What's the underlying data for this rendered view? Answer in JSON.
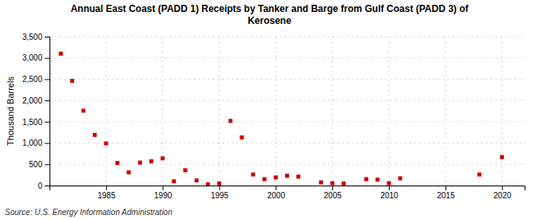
{
  "chart_data": {
    "type": "scatter",
    "title": "Annual East Coast (PADD 1) Receipts by Tanker and Barge from Gulf Coast (PADD 3) of\nKerosene",
    "ylabel": "Thousand Barrels",
    "annotations": [
      "Source: U.S. Energy Information Administration"
    ],
    "x": [
      1981,
      1982,
      1983,
      1984,
      1985,
      1986,
      1987,
      1988,
      1989,
      1990,
      1991,
      1992,
      1993,
      1994,
      1995,
      1996,
      1997,
      1998,
      1999,
      2000,
      2001,
      2002,
      2004,
      2005,
      2006,
      2008,
      2009,
      2010,
      2011,
      2018,
      2020
    ],
    "values": [
      3100,
      2460,
      1760,
      1190,
      990,
      530,
      310,
      540,
      570,
      640,
      100,
      360,
      120,
      30,
      50,
      1520,
      1130,
      260,
      150,
      190,
      230,
      210,
      75,
      55,
      50,
      150,
      140,
      55,
      170,
      260,
      670
    ],
    "color": "#cc0000",
    "marker": "square",
    "xlim": [
      1980,
      2022
    ],
    "xticks": [
      1985,
      1990,
      1995,
      2000,
      2005,
      2010,
      2015,
      2020
    ],
    "ylim": [
      0,
      3500
    ],
    "yticks": [
      0,
      500,
      {
        "value": 1000,
        "label": "1,000"
      },
      {
        "value": 1500,
        "label": "1,500"
      },
      {
        "value": 2000,
        "label": "2,000"
      },
      {
        "value": 2500,
        "label": "2,500"
      },
      {
        "value": 3000,
        "label": "3,000"
      },
      {
        "value": 3500,
        "label": "3,500"
      }
    ],
    "grid": true
  }
}
